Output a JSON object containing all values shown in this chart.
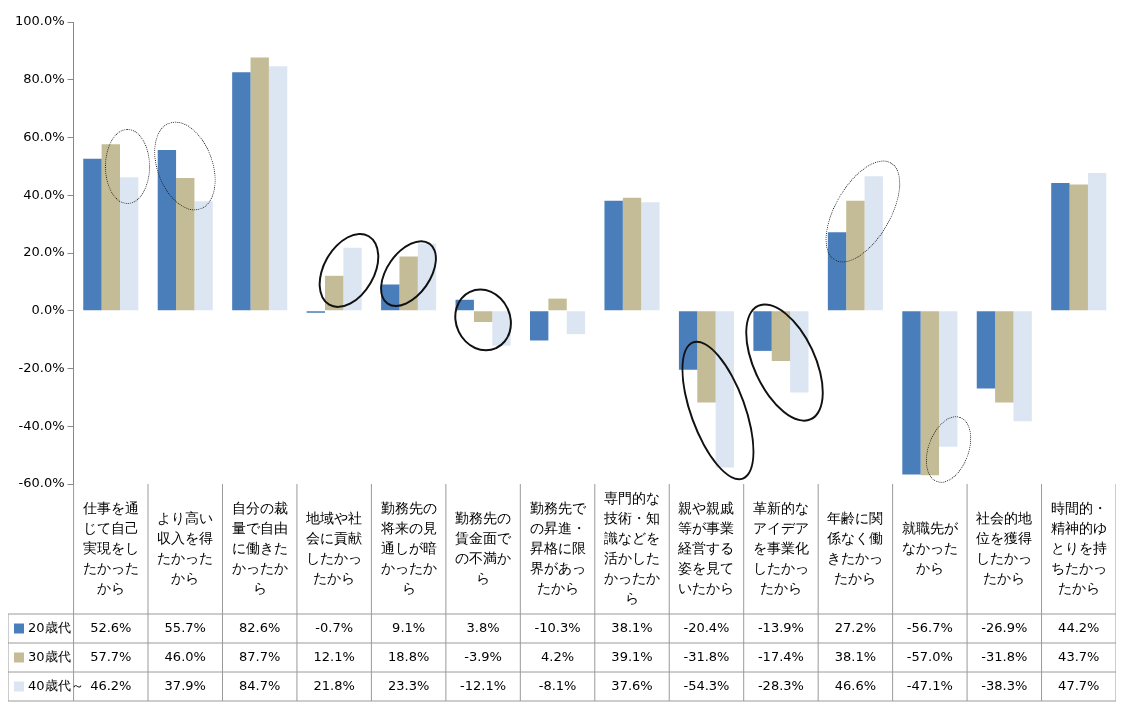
{
  "chart_data": {
    "type": "bar",
    "categories": [
      "仕事を通じて自己実現をしたかったから",
      "より高い収入を得たかったから",
      "自分の裁量で自由に働きたかったから",
      "地域や社会に貢献したかったから",
      "勤務先の将来の見通しが暗かったから",
      "勤務先の賃金面での不満から",
      "勤務先での昇進・昇格に限界があったから",
      "専門的な技術・知識などを活かしたかったから",
      "親や親戚等が事業経営する姿を見ていたから",
      "革新的なアイデアを事業化したかったから",
      "年齢に関係なく働きたかったから",
      "就職先がなかったから",
      "社会的地位を獲得したかったから",
      "時間的・精神的ゆとりを持ちたかったから"
    ],
    "series": [
      {
        "name": "20歳代",
        "color": "#4a7ebb",
        "values": [
          52.6,
          55.7,
          82.6,
          -0.7,
          9.1,
          3.8,
          -10.3,
          38.1,
          -20.4,
          -13.9,
          27.2,
          -56.7,
          -26.9,
          44.2
        ],
        "value_labels": [
          "52.6%",
          "55.7%",
          "82.6%",
          "-0.7%",
          "9.1%",
          "3.8%",
          "-10.3%",
          "38.1%",
          "-20.4%",
          "-13.9%",
          "27.2%",
          "-56.7%",
          "-26.9%",
          "44.2%"
        ]
      },
      {
        "name": "30歳代",
        "color": "#c4bc96",
        "values": [
          57.7,
          46.0,
          87.7,
          12.1,
          18.8,
          -3.9,
          4.2,
          39.1,
          -31.8,
          -17.4,
          38.1,
          -57.0,
          -31.8,
          43.7
        ],
        "value_labels": [
          "57.7%",
          "46.0%",
          "87.7%",
          "12.1%",
          "18.8%",
          "-3.9%",
          "4.2%",
          "39.1%",
          "-31.8%",
          "-17.4%",
          "38.1%",
          "-57.0%",
          "-31.8%",
          "43.7%"
        ]
      },
      {
        "name": "40歳代～",
        "color": "#dce6f2",
        "values": [
          46.2,
          37.9,
          84.7,
          21.8,
          23.3,
          -12.1,
          -8.1,
          37.6,
          -54.3,
          -28.3,
          46.6,
          -47.1,
          -38.3,
          47.7
        ],
        "value_labels": [
          "46.2%",
          "37.9%",
          "84.7%",
          "21.8%",
          "23.3%",
          "-12.1%",
          "-8.1%",
          "37.6%",
          "-54.3%",
          "-28.3%",
          "46.6%",
          "-47.1%",
          "-38.3%",
          "47.7%"
        ]
      }
    ],
    "ylim": [
      -60,
      100
    ],
    "yticks": [
      {
        "value": 100,
        "label": "100.0%"
      },
      {
        "value": 80,
        "label": "80.0%"
      },
      {
        "value": 60,
        "label": "60.0%"
      },
      {
        "value": 40,
        "label": "40.0%"
      },
      {
        "value": 20,
        "label": "20.0%"
      },
      {
        "value": 0,
        "label": "0.0%"
      },
      {
        "value": -20,
        "label": "-20.0%"
      },
      {
        "value": -40,
        "label": "-40.0%"
      },
      {
        "value": -60,
        "label": "-60.0%"
      }
    ],
    "grid": false,
    "legend": "bottom left"
  }
}
